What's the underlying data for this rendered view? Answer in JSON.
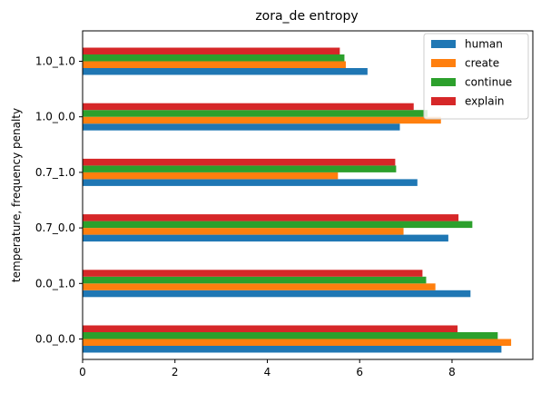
{
  "chart_data": {
    "type": "bar",
    "orientation": "horizontal",
    "title": "zora_de entropy",
    "xlabel": "",
    "ylabel": "temperature, frequency penalty",
    "categories": [
      "0.0_0.0",
      "0.0_1.0",
      "0.7_0.0",
      "0.7_1.0",
      "1.0_0.0",
      "1.0_1.0"
    ],
    "xlim": [
      0,
      9.75
    ],
    "xticks": [
      0,
      2,
      4,
      6,
      8
    ],
    "grid": false,
    "legend_position": "top-right",
    "series": [
      {
        "name": "human",
        "color": "#1f77b4",
        "values": [
          9.07,
          8.4,
          7.92,
          7.25,
          6.87,
          6.17
        ]
      },
      {
        "name": "create",
        "color": "#ff7f0e",
        "values": [
          9.28,
          7.64,
          6.95,
          5.53,
          7.76,
          5.7
        ]
      },
      {
        "name": "continue",
        "color": "#2ca02c",
        "values": [
          8.99,
          7.44,
          8.44,
          6.79,
          7.47,
          5.67
        ]
      },
      {
        "name": "explain",
        "color": "#d62728",
        "values": [
          8.12,
          7.36,
          8.14,
          6.77,
          7.17,
          5.57
        ]
      }
    ]
  }
}
